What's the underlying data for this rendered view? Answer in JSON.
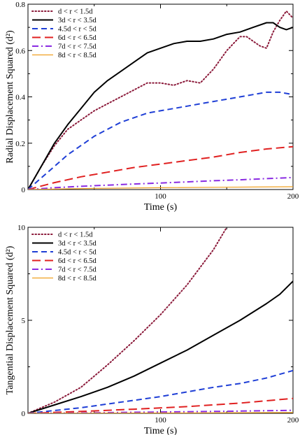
{
  "chart_data": [
    {
      "type": "line",
      "xlabel": "Time (s)",
      "ylabel": "Radial Displacement Squared (d²)",
      "xlim": [
        0,
        200
      ],
      "ylim": [
        0,
        0.8
      ],
      "xticks": [
        "100",
        "200"
      ],
      "yticks": [
        "0",
        "0.2",
        "0.4",
        "0.6",
        "0.8"
      ],
      "ytick_values": [
        0,
        0.2,
        0.4,
        0.6,
        0.8
      ],
      "xtick_values": [
        100,
        200
      ],
      "legend_position": "top-left",
      "series": [
        {
          "name": "d < r < 1.5d",
          "color": "#8b1a3a",
          "dash": "dotted",
          "x": [
            0,
            10,
            20,
            30,
            40,
            50,
            60,
            70,
            80,
            90,
            100,
            110,
            120,
            130,
            140,
            150,
            160,
            165,
            170,
            175,
            180,
            185,
            190,
            195,
            200
          ],
          "y": [
            0,
            0.1,
            0.19,
            0.26,
            0.3,
            0.34,
            0.37,
            0.4,
            0.43,
            0.46,
            0.46,
            0.45,
            0.47,
            0.46,
            0.52,
            0.6,
            0.66,
            0.66,
            0.64,
            0.62,
            0.61,
            0.68,
            0.73,
            0.77,
            0.74
          ]
        },
        {
          "name": "3d < r < 3.5d",
          "color": "#000000",
          "dash": "solid",
          "x": [
            0,
            10,
            20,
            30,
            40,
            50,
            60,
            70,
            80,
            90,
            100,
            110,
            120,
            130,
            140,
            150,
            160,
            170,
            180,
            185,
            190,
            195,
            200
          ],
          "y": [
            0,
            0.1,
            0.2,
            0.28,
            0.35,
            0.42,
            0.47,
            0.51,
            0.55,
            0.59,
            0.61,
            0.63,
            0.64,
            0.64,
            0.65,
            0.67,
            0.68,
            0.7,
            0.72,
            0.72,
            0.7,
            0.69,
            0.7
          ]
        },
        {
          "name": "4.5d < r < 5d",
          "color": "#1f3fd6",
          "dash": "dashed",
          "x": [
            0,
            10,
            20,
            30,
            40,
            50,
            60,
            70,
            80,
            90,
            100,
            110,
            120,
            130,
            140,
            150,
            160,
            170,
            180,
            190,
            200
          ],
          "y": [
            0,
            0.05,
            0.1,
            0.15,
            0.19,
            0.23,
            0.26,
            0.29,
            0.31,
            0.33,
            0.34,
            0.35,
            0.36,
            0.37,
            0.38,
            0.39,
            0.4,
            0.41,
            0.42,
            0.42,
            0.41
          ]
        },
        {
          "name": "6d < r < 6.5d",
          "color": "#e02020",
          "dash": "longdash",
          "x": [
            0,
            20,
            40,
            60,
            80,
            100,
            120,
            140,
            160,
            180,
            200
          ],
          "y": [
            0,
            0.03,
            0.055,
            0.075,
            0.095,
            0.11,
            0.125,
            0.14,
            0.16,
            0.175,
            0.185
          ]
        },
        {
          "name": "7d < r < 7.5d",
          "color": "#8a2be2",
          "dash": "dashdot",
          "x": [
            0,
            20,
            40,
            60,
            80,
            100,
            120,
            140,
            160,
            180,
            200
          ],
          "y": [
            0,
            0.008,
            0.014,
            0.019,
            0.024,
            0.028,
            0.033,
            0.038,
            0.042,
            0.047,
            0.052
          ]
        },
        {
          "name": "8d < r < 8.5d",
          "color": "#f0a020",
          "dash": "solid",
          "x": [
            0,
            50,
            100,
            150,
            200
          ],
          "y": [
            0,
            0.005,
            0.008,
            0.01,
            0.012
          ]
        }
      ]
    },
    {
      "type": "line",
      "xlabel": "Time (s)",
      "ylabel": "Tangential Displacement Squared (d²)",
      "xlim": [
        0,
        200
      ],
      "ylim": [
        0,
        10
      ],
      "xticks": [
        "100",
        "200"
      ],
      "yticks": [
        "0",
        "5",
        "10"
      ],
      "ytick_values": [
        0,
        5,
        10
      ],
      "xtick_values": [
        100,
        200
      ],
      "legend_position": "top-left",
      "series": [
        {
          "name": "d < r < 1.5d",
          "color": "#8b1a3a",
          "dash": "dotted",
          "x": [
            0,
            20,
            40,
            60,
            80,
            100,
            120,
            140,
            150
          ],
          "y": [
            0,
            0.6,
            1.4,
            2.6,
            3.9,
            5.3,
            6.9,
            8.8,
            10
          ]
        },
        {
          "name": "3d < r < 3.5d",
          "color": "#000000",
          "dash": "solid",
          "x": [
            0,
            20,
            40,
            60,
            80,
            100,
            120,
            140,
            160,
            180,
            190,
            200
          ],
          "y": [
            0,
            0.45,
            0.9,
            1.4,
            2.0,
            2.7,
            3.4,
            4.2,
            5.0,
            5.9,
            6.4,
            7.1
          ]
        },
        {
          "name": "4.5d < r < 5d",
          "color": "#1f3fd6",
          "dash": "dashed",
          "x": [
            0,
            20,
            40,
            60,
            80,
            100,
            120,
            140,
            160,
            180,
            200
          ],
          "y": [
            0,
            0.15,
            0.3,
            0.5,
            0.7,
            0.9,
            1.15,
            1.4,
            1.6,
            1.9,
            2.3
          ]
        },
        {
          "name": "6d < r < 6.5d",
          "color": "#e02020",
          "dash": "longdash",
          "x": [
            0,
            40,
            80,
            120,
            160,
            200
          ],
          "y": [
            0,
            0.1,
            0.22,
            0.36,
            0.55,
            0.8
          ]
        },
        {
          "name": "7d < r < 7.5d",
          "color": "#8a2be2",
          "dash": "dashdot",
          "x": [
            0,
            50,
            100,
            150,
            200
          ],
          "y": [
            0,
            0.03,
            0.07,
            0.11,
            0.16
          ]
        },
        {
          "name": "8d < r < 8.5d",
          "color": "#f0a020",
          "dash": "solid",
          "x": [
            0,
            100,
            200
          ],
          "y": [
            0,
            0.02,
            0.04
          ]
        }
      ]
    }
  ]
}
